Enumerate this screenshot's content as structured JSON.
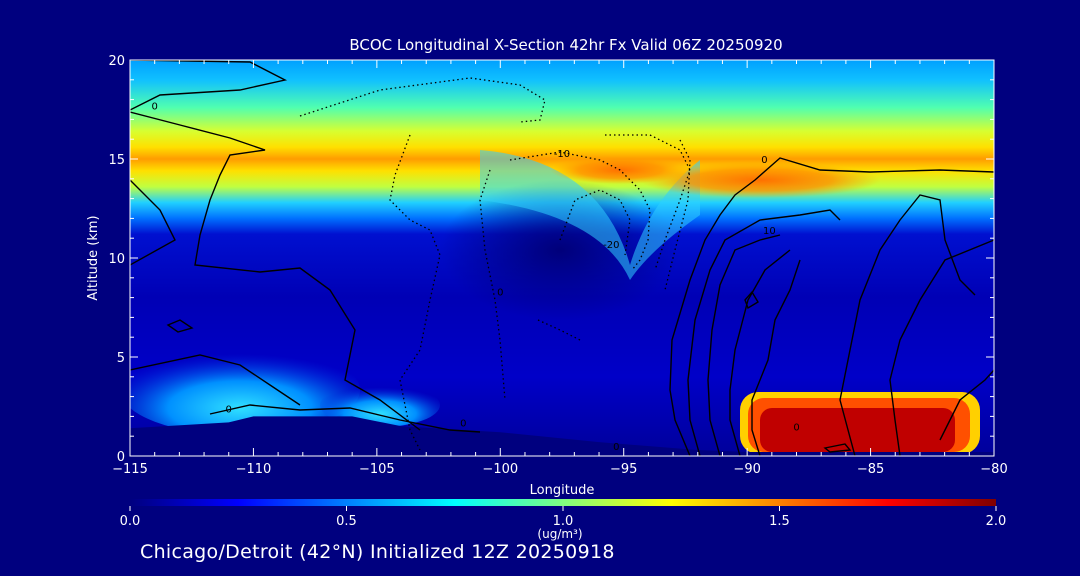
{
  "chart_data": {
    "type": "heatmap",
    "title": "BCOC Longitudinal X-Section 42hr  Fx Valid 06Z 20250920",
    "xlabel": "Longitude",
    "ylabel": "Altitude (km)",
    "xlim": [
      -115,
      -80
    ],
    "ylim": [
      0,
      20
    ],
    "x_ticks": [
      "-115",
      "-110",
      "-105",
      "-100",
      "-95",
      "-90",
      "-85",
      "-80"
    ],
    "y_ticks": [
      "0",
      "5",
      "10",
      "15",
      "20"
    ],
    "colorbar": {
      "range": [
        0.0,
        2.0
      ],
      "ticks": [
        "0.0",
        "0.5",
        "1.0",
        "1.5",
        "2.0"
      ],
      "label": "(ug/m³)",
      "colors": [
        "#00007f",
        "#0000ff",
        "#0080ff",
        "#00ffff",
        "#80ff80",
        "#ffff00",
        "#ff8000",
        "#ff0000",
        "#7f0000"
      ]
    },
    "bcoc_layers": [
      {
        "name": "upper-yellow-band",
        "altitude_km": [
          13.5,
          16.5
        ],
        "value": 1.1
      },
      {
        "name": "orange-peak-15km",
        "altitude_km": [
          14.5,
          15.5
        ],
        "value": 1.3
      },
      {
        "name": "upper-cyan-band",
        "altitude_km": [
          12,
          19.5
        ],
        "value": 0.7
      },
      {
        "name": "surface-plume",
        "longitude": [
          -89,
          -82
        ],
        "altitude_km": [
          0.3,
          2.0
        ],
        "value": 2.0
      },
      {
        "name": "western-low-level",
        "longitude": [
          -115,
          -100
        ],
        "altitude_km": [
          1,
          5
        ],
        "value": 0.6
      }
    ],
    "contour_labels": [
      {
        "text": "0",
        "lon": -114,
        "alt": 17.5
      },
      {
        "text": "0",
        "lon": -111,
        "alt": 2.2
      },
      {
        "text": "0",
        "lon": -101.5,
        "alt": 1.5
      },
      {
        "text": "0",
        "lon": -95.3,
        "alt": 0.3
      },
      {
        "text": "-10",
        "lon": -97.5,
        "alt": 15.1
      },
      {
        "text": "-20",
        "lon": -95.5,
        "alt": 10.5
      },
      {
        "text": "0",
        "lon": -100,
        "alt": 8.1
      },
      {
        "text": "0",
        "lon": -89.3,
        "alt": 14.8
      },
      {
        "text": "10",
        "lon": -89.1,
        "alt": 11.2
      },
      {
        "text": "0",
        "lon": -88,
        "alt": 1.3
      }
    ],
    "topography_km": [
      [
        -115,
        1.4
      ],
      [
        -111,
        1.7
      ],
      [
        -110,
        2.0
      ],
      [
        -106,
        2.0
      ],
      [
        -104,
        1.5
      ],
      [
        -100,
        1.2
      ],
      [
        -96,
        0.7
      ],
      [
        -92,
        0.3
      ],
      [
        -90,
        0.2
      ],
      [
        -85,
        0.2
      ],
      [
        -80,
        0.2
      ]
    ],
    "fill_lines": [
      {
        "name": "fill-1",
        "start": [
          -115,
          19
        ],
        "end": [
          -80,
          19
        ],
        "value": 0.5
      }
    ]
  },
  "footer": "Chicago/Detroit (42°N) Initialized 12Z 20250918"
}
